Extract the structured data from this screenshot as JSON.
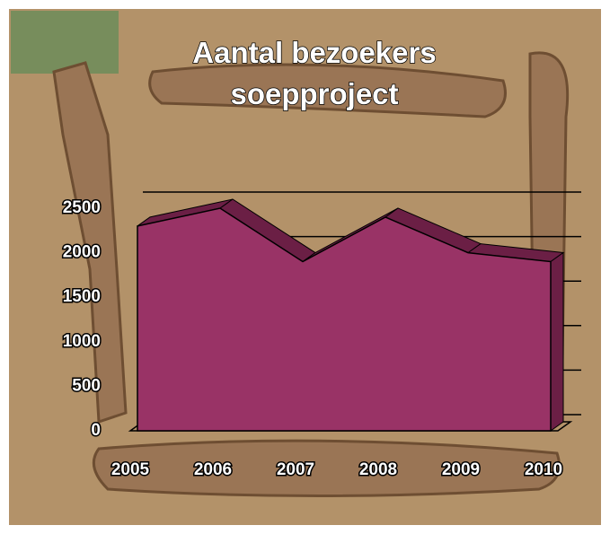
{
  "chart_data": {
    "type": "area",
    "title": "Aantal bezoekers soepproject",
    "categories": [
      "2005",
      "2006",
      "2007",
      "2008",
      "2009",
      "2010"
    ],
    "values": [
      2300,
      2500,
      1900,
      2400,
      2000,
      1900
    ],
    "color": "#993366",
    "ylim": [
      0,
      2500
    ],
    "yticks": [
      0,
      500,
      1000,
      1500,
      2000,
      2500
    ],
    "grid": true
  }
}
